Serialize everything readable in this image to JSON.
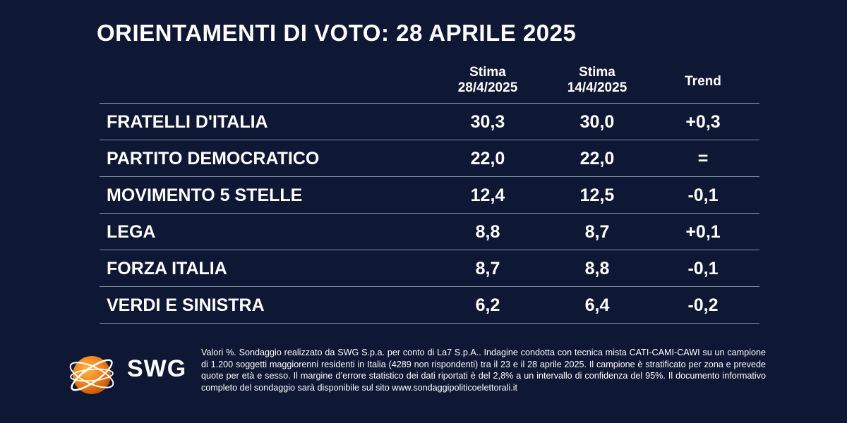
{
  "title": "ORIENTAMENTI DI VOTO: 28 APRILE 2025",
  "columns": {
    "c1_line1": "Stima",
    "c1_line2": "28/4/2025",
    "c2_line1": "Stima",
    "c2_line2": "14/4/2025",
    "c3": "Trend"
  },
  "rows": [
    {
      "party": "FRATELLI D'ITALIA",
      "v1": "30,3",
      "v2": "30,0",
      "trend": "+0,3"
    },
    {
      "party": "PARTITO DEMOCRATICO",
      "v1": "22,0",
      "v2": "22,0",
      "trend": "="
    },
    {
      "party": "MOVIMENTO 5 STELLE",
      "v1": "12,4",
      "v2": "12,5",
      "trend": "-0,1"
    },
    {
      "party": "LEGA",
      "v1": "8,8",
      "v2": "8,7",
      "trend": "+0,1"
    },
    {
      "party": "FORZA ITALIA",
      "v1": "8,7",
      "v2": "8,8",
      "trend": "-0,1"
    },
    {
      "party": "VERDI E SINISTRA",
      "v1": "6,2",
      "v2": "6,4",
      "trend": "-0,2"
    }
  ],
  "logo": {
    "text": "SWG",
    "icon": "orange-globe-icon",
    "color": "#f0821e"
  },
  "note": "Valori %. Sondaggio realizzato da SWG S.p.a. per conto di La7 S.p.A.. Indagine condotta con tecnica mista CATI-CAMI-CAWI su un campione di 1.200 soggetti maggiorenni residenti in Italia (4289 non rispondenti) tra il 23 e il 28 aprile 2025. Il campione è stratificato per zona e prevede quote per età e sesso. Il margine d’errore statistico dei dati riportati è del 2,8% a un intervallo di confidenza del 95%. Il documento informativo completo del sondaggio sarà disponibile sul sito www.sondaggipoliticoelettorali.it",
  "colors": {
    "background": "#0e1733",
    "text": "#ffffff",
    "rule": "#8a8fa2"
  },
  "chart_data": {
    "type": "table",
    "title": "ORIENTAMENTI DI VOTO: 28 APRILE 2025",
    "columns": [
      "Stima 28/4/2025",
      "Stima 14/4/2025",
      "Trend"
    ],
    "categories": [
      "FRATELLI D'ITALIA",
      "PARTITO DEMOCRATICO",
      "MOVIMENTO 5 STELLE",
      "LEGA",
      "FORZA ITALIA",
      "VERDI E SINISTRA"
    ],
    "series": [
      {
        "name": "Stima 28/4/2025",
        "values": [
          30.3,
          22.0,
          12.4,
          8.8,
          8.7,
          6.2
        ]
      },
      {
        "name": "Stima 14/4/2025",
        "values": [
          30.0,
          22.0,
          12.5,
          8.7,
          8.8,
          6.4
        ]
      },
      {
        "name": "Trend",
        "values": [
          0.3,
          0.0,
          -0.1,
          0.1,
          -0.1,
          -0.2
        ]
      }
    ]
  }
}
